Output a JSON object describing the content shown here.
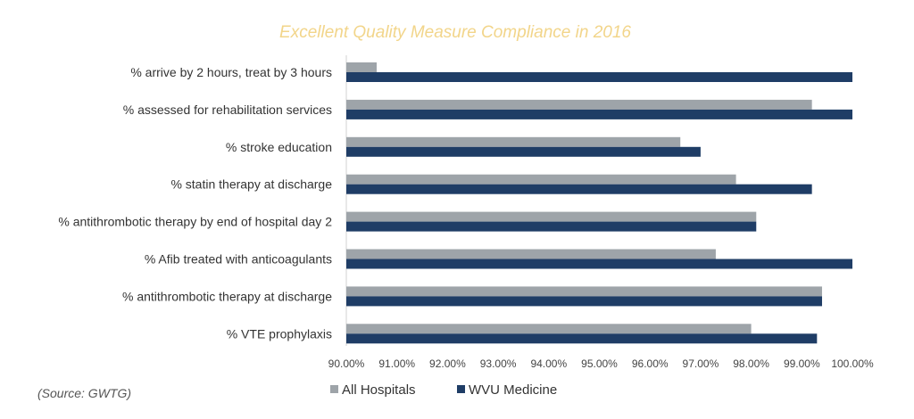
{
  "chart_data": {
    "type": "bar",
    "orientation": "horizontal",
    "title": "Excellent Quality Measure Compliance in 2016",
    "categories": [
      "% arrive by 2 hours, treat by 3 hours",
      "% assessed for rehabilitation services",
      "% stroke education",
      "% statin therapy at discharge",
      "% antithrombotic therapy by end of hospital day 2",
      "% Afib treated with anticoagulants",
      "% antithrombotic therapy at discharge",
      "% VTE prophylaxis"
    ],
    "series": [
      {
        "name": "All Hospitals",
        "values": [
          90.6,
          99.2,
          96.6,
          97.7,
          98.1,
          97.3,
          99.4,
          98.0
        ]
      },
      {
        "name": "WVU Medicine",
        "values": [
          100.0,
          100.0,
          97.0,
          99.2,
          98.1,
          100.0,
          99.4,
          99.3
        ]
      }
    ],
    "xlim": [
      90,
      100
    ],
    "xticks": [
      "90.00%",
      "91.00%",
      "92.00%",
      "93.00%",
      "94.00%",
      "95.00%",
      "96.00%",
      "97.00%",
      "98.00%",
      "99.00%",
      "100.00%"
    ],
    "legend_position": "bottom",
    "grid": false
  },
  "source_note": "(Source: GWTG)",
  "colors": {
    "title": "#F2D58A",
    "all_hospitals": "#9EA4A9",
    "wvu_medicine": "#1F3D66"
  }
}
